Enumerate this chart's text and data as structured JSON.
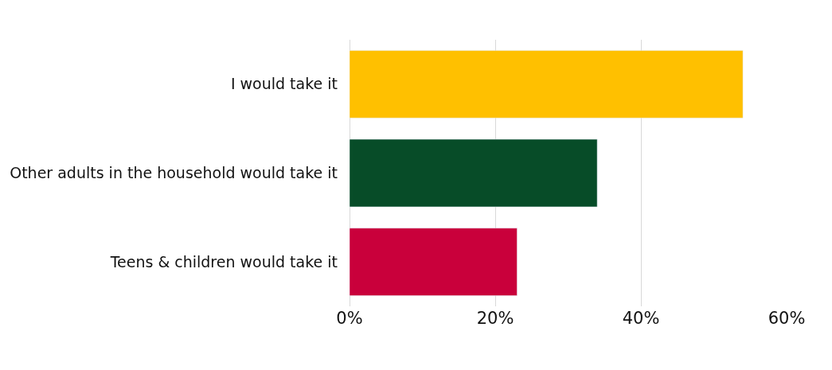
{
  "chart_data": {
    "type": "bar",
    "orientation": "horizontal",
    "categories": [
      "I would take it",
      "Other adults in the household would take it",
      "Teens & children would take it"
    ],
    "values": [
      54,
      34,
      23
    ],
    "colors": [
      "#ffc000",
      "#074c28",
      "#c9003b"
    ],
    "xlim": [
      0,
      60
    ],
    "xticks": [
      {
        "value": 0,
        "label": "0%"
      },
      {
        "value": 20,
        "label": "20%"
      },
      {
        "value": 40,
        "label": "40%"
      },
      {
        "value": 60,
        "label": "60%"
      }
    ],
    "grid": "x"
  }
}
